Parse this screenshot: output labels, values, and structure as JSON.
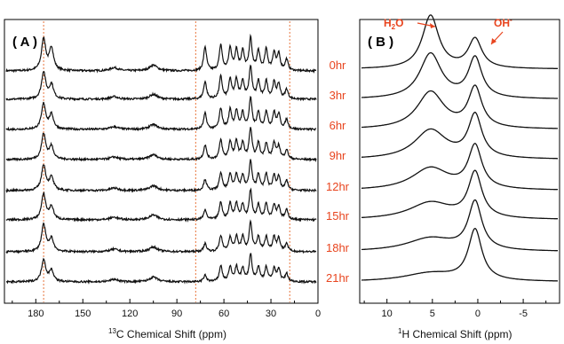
{
  "chart_data": [
    {
      "type": "line",
      "panel_label": "( A )",
      "xlabel_sup": "13",
      "xlabel": "C Chemical Shift  (ppm)",
      "xlim": [
        200,
        0
      ],
      "x_reversed": true,
      "x_ticks": [
        180,
        150,
        120,
        90,
        60,
        30,
        0
      ],
      "reference_lines_ppm": [
        175,
        78,
        18
      ],
      "reference_line_color": "#e8743b",
      "trace_color": "#111111",
      "series": [
        {
          "name": "0hr"
        },
        {
          "name": "3hr"
        },
        {
          "name": "6hr"
        },
        {
          "name": "9hr"
        },
        {
          "name": "12hr"
        },
        {
          "name": "15hr"
        },
        {
          "name": "18hr"
        },
        {
          "name": "21hr"
        }
      ],
      "peaks": [
        {
          "ppm": 175,
          "rel_height": [
            1.0,
            0.85,
            0.8,
            0.8,
            0.8,
            0.8,
            0.85,
            0.7
          ]
        },
        {
          "ppm": 170,
          "rel_height": [
            0.7,
            0.45,
            0.45,
            0.4,
            0.4,
            0.4,
            0.4,
            0.35
          ]
        },
        {
          "ppm": 130,
          "rel_height": [
            0.1,
            0.08,
            0.08,
            0.08,
            0.08,
            0.08,
            0.08,
            0.08
          ]
        },
        {
          "ppm": 105,
          "rel_height": [
            0.18,
            0.15,
            0.15,
            0.15,
            0.15,
            0.15,
            0.15,
            0.15
          ]
        },
        {
          "ppm": 72,
          "rel_height": [
            0.75,
            0.55,
            0.5,
            0.45,
            0.35,
            0.3,
            0.25,
            0.2
          ]
        },
        {
          "ppm": 62,
          "rel_height": [
            0.8,
            0.7,
            0.65,
            0.6,
            0.55,
            0.55,
            0.5,
            0.5
          ]
        },
        {
          "ppm": 56,
          "rel_height": [
            0.7,
            0.6,
            0.6,
            0.55,
            0.5,
            0.5,
            0.45,
            0.45
          ]
        },
        {
          "ppm": 52,
          "rel_height": [
            0.65,
            0.6,
            0.55,
            0.55,
            0.5,
            0.5,
            0.45,
            0.45
          ]
        },
        {
          "ppm": 48,
          "rel_height": [
            0.6,
            0.55,
            0.5,
            0.5,
            0.45,
            0.45,
            0.45,
            0.4
          ]
        },
        {
          "ppm": 43,
          "rel_height": [
            1.0,
            1.0,
            0.95,
            0.95,
            0.9,
            0.9,
            0.9,
            0.85
          ]
        },
        {
          "ppm": 38,
          "rel_height": [
            0.6,
            0.55,
            0.5,
            0.5,
            0.5,
            0.45,
            0.45,
            0.45
          ]
        },
        {
          "ppm": 33,
          "rel_height": [
            0.65,
            0.55,
            0.55,
            0.5,
            0.5,
            0.5,
            0.45,
            0.45
          ]
        },
        {
          "ppm": 28,
          "rel_height": [
            0.55,
            0.5,
            0.5,
            0.5,
            0.45,
            0.45,
            0.45,
            0.4
          ]
        },
        {
          "ppm": 25,
          "rel_height": [
            0.5,
            0.45,
            0.45,
            0.4,
            0.4,
            0.4,
            0.4,
            0.4
          ]
        },
        {
          "ppm": 20,
          "rel_height": [
            0.35,
            0.3,
            0.3,
            0.3,
            0.3,
            0.3,
            0.25,
            0.25
          ]
        }
      ]
    },
    {
      "type": "line",
      "panel_label": "( B )",
      "xlabel_sup": "1",
      "xlabel": "H Chemical Shift (ppm)",
      "xlim": [
        13,
        -9
      ],
      "x_reversed": true,
      "x_ticks": [
        10,
        5,
        0,
        -5
      ],
      "trace_color": "#111111",
      "series": [
        {
          "name": "0hr",
          "h2o_height": 1.0,
          "oh_height": 0.55
        },
        {
          "name": "3hr",
          "h2o_height": 0.85,
          "oh_height": 0.75
        },
        {
          "name": "6hr",
          "h2o_height": 0.7,
          "oh_height": 0.75
        },
        {
          "name": "9hr",
          "h2o_height": 0.55,
          "oh_height": 0.8
        },
        {
          "name": "12hr",
          "h2o_height": 0.42,
          "oh_height": 0.8
        },
        {
          "name": "15hr",
          "h2o_height": 0.32,
          "oh_height": 0.85
        },
        {
          "name": "18hr",
          "h2o_height": 0.25,
          "oh_height": 0.9
        },
        {
          "name": "21hr",
          "h2o_height": 0.16,
          "oh_height": 0.95
        }
      ],
      "peaks": [
        {
          "name": "H2O",
          "ppm": 5.2
        },
        {
          "name": "OH-",
          "ppm": 0.3
        }
      ],
      "annotations": [
        {
          "base": "H",
          "sub": "2",
          "rest": "O",
          "target": "H2O"
        },
        {
          "base": "OH",
          "sup": "-",
          "target": "OH-"
        }
      ],
      "annotation_color": "#e8451f",
      "time_labels": [
        "0hr",
        "3hr",
        "6hr",
        "9hr",
        "12hr",
        "15hr",
        "18hr",
        "21hr"
      ]
    }
  ]
}
